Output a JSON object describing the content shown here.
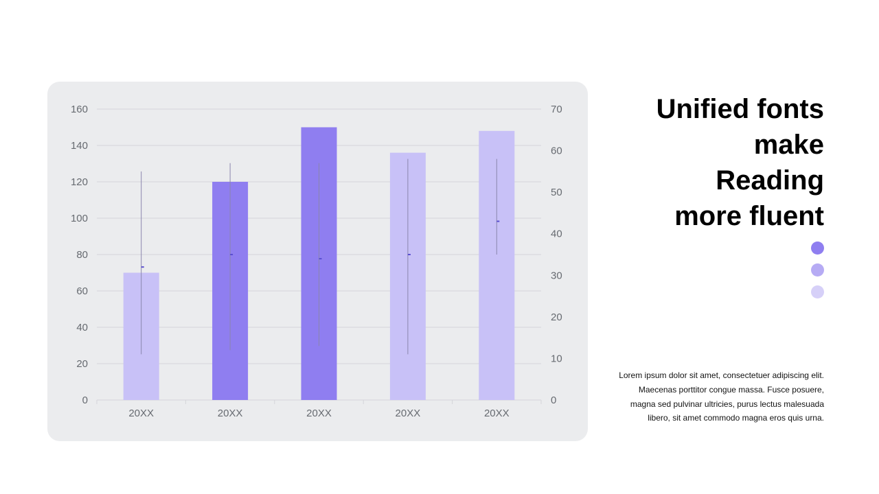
{
  "title_lines": [
    "Unified fonts",
    "make",
    "Reading",
    "more fluent"
  ],
  "body_text": "Lorem ipsum dolor sit amet, consectetuer adipiscing elit. Maecenas porttitor congue massa. Fusce posuere, magna sed pulvinar ultricies, purus lectus malesuada libero, sit amet commodo magna eros quis urna.",
  "dots": [
    "#8f7ef0",
    "#b6abf4",
    "#d6d0f8"
  ],
  "colors": {
    "light_bar": "#c8c1f7",
    "dark_bar": "#8f7ef0",
    "stock_line": "#8a86ad",
    "stock_mark": "#5a4fd0",
    "grid": "#d4d5d9",
    "panel": "#ebecee"
  },
  "chart_data": {
    "type": "bar",
    "categories": [
      "20XX",
      "20XX",
      "20XX",
      "20XX",
      "20XX"
    ],
    "series": [
      {
        "values": [
          70,
          120,
          150,
          136,
          148
        ],
        "colors": [
          "light",
          "dark",
          "dark",
          "light",
          "light"
        ]
      }
    ],
    "secondary_series": {
      "type": "high-low-close",
      "high": [
        55,
        57,
        57,
        58,
        58
      ],
      "low": [
        11,
        12,
        13,
        11,
        35
      ],
      "close": [
        32,
        35,
        34,
        35,
        43
      ]
    },
    "ylim": [
      0,
      160
    ],
    "yticks": [
      "0",
      "20",
      "40",
      "60",
      "80",
      "100",
      "120",
      "140",
      "160"
    ],
    "y2lim": [
      0,
      70
    ],
    "y2ticks": [
      "0",
      "10",
      "20",
      "30",
      "40",
      "50",
      "60",
      "70"
    ],
    "grid": true,
    "legend": "none"
  }
}
